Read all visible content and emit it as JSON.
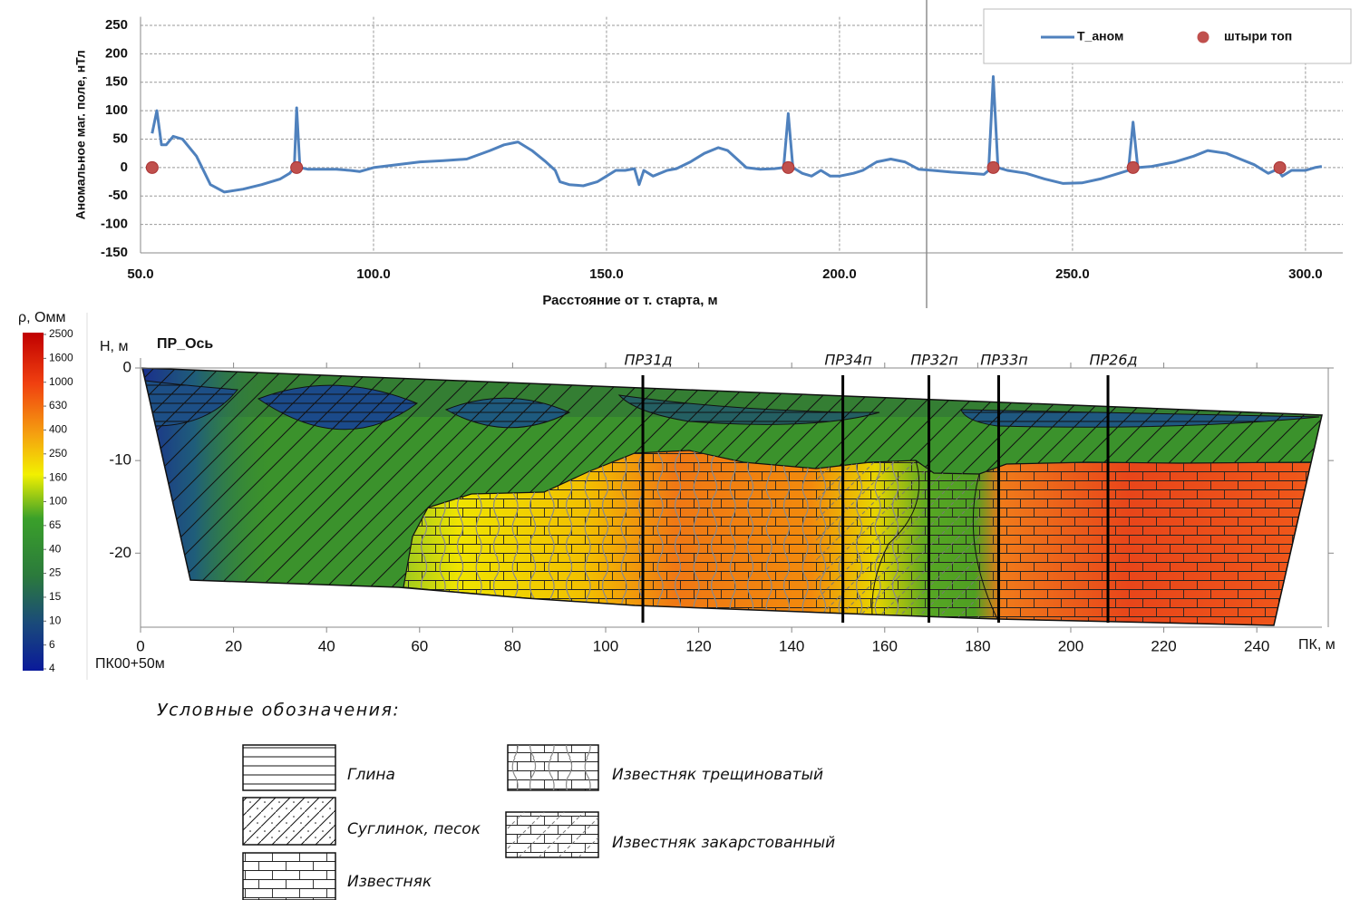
{
  "chart_data": [
    {
      "type": "line",
      "ylabel": "Аномальное маг. поле, нТл",
      "xlabel": "Расстояние от т. старта, м",
      "x": [
        52.5,
        53.5,
        54.5,
        55.5,
        57,
        59,
        62,
        65,
        68,
        72,
        76,
        80,
        82,
        83,
        83.5,
        84.2,
        86,
        92,
        95,
        97,
        100,
        105,
        110,
        115,
        120,
        125,
        128,
        131,
        134,
        137,
        139,
        140,
        142,
        145,
        148,
        150,
        152,
        154,
        156,
        157,
        158,
        160,
        163,
        165,
        168,
        171,
        174,
        176,
        178,
        180,
        183,
        186,
        188,
        189,
        190,
        192,
        194,
        196,
        198,
        200,
        203,
        205,
        208,
        211,
        214,
        217,
        220,
        224,
        228,
        231,
        232,
        233,
        234,
        236,
        240,
        244,
        248,
        252,
        256,
        260,
        262,
        263,
        264,
        267,
        272,
        276,
        279,
        283,
        286,
        289,
        292,
        294,
        295,
        297,
        300,
        302,
        303.5
      ],
      "series": [
        {
          "name": "T_аном",
          "color": "#4f81bd",
          "values": [
            60,
            100,
            40,
            40,
            55,
            50,
            20,
            -30,
            -43,
            -38,
            -30,
            -20,
            -10,
            0,
            105,
            0,
            -3,
            -3,
            -5,
            -7,
            0,
            5,
            10,
            12,
            15,
            30,
            40,
            45,
            30,
            10,
            -5,
            -25,
            -30,
            -32,
            -25,
            -15,
            -5,
            -5,
            -2,
            -30,
            -5,
            -15,
            -5,
            -2,
            10,
            25,
            35,
            30,
            15,
            0,
            -3,
            -2,
            0,
            95,
            0,
            -10,
            -15,
            -5,
            -15,
            -15,
            -10,
            -5,
            10,
            15,
            10,
            -3,
            -5,
            -8,
            -10,
            -12,
            -5,
            160,
            0,
            -5,
            -10,
            -20,
            -28,
            -27,
            -20,
            -10,
            -5,
            80,
            0,
            2,
            10,
            20,
            30,
            25,
            15,
            5,
            -10,
            -3,
            -15,
            -5,
            -5,
            0,
            2
          ]
        }
      ],
      "markers": {
        "name": "штыри топ",
        "color": "#c0504d",
        "x": [
          52.5,
          83.5,
          189,
          233,
          263,
          294.5
        ],
        "values": [
          0,
          0,
          0,
          0,
          0,
          0
        ]
      },
      "xlim": [
        50,
        308
      ],
      "ylim": [
        -150,
        265
      ],
      "xticks": [
        {
          "value": 50,
          "label": "50.0"
        },
        {
          "value": 100,
          "label": "100.0"
        },
        {
          "value": 150,
          "label": "150.0"
        },
        {
          "value": 200,
          "label": "200.0"
        },
        {
          "value": 250,
          "label": "250.0"
        },
        {
          "value": 300,
          "label": "300.0"
        }
      ],
      "yticks": [
        250,
        200,
        150,
        100,
        50,
        0,
        -50,
        -100,
        -150
      ],
      "grid": true,
      "legend": "top-right"
    },
    {
      "type": "section",
      "title": "ПР_Ось",
      "ylabel": "Н, м",
      "xlabel": "ПК, м",
      "origin_label": "ПК00+50м",
      "xlim": [
        0,
        254
      ],
      "ylim": [
        -28,
        0
      ],
      "xticks": [
        0,
        20,
        40,
        60,
        80,
        100,
        120,
        140,
        160,
        180,
        200,
        220,
        240
      ],
      "yticks": [
        0,
        -10,
        -20
      ],
      "boreholes": {
        "names": [
          "ПР31д",
          "ПР34п",
          "ПР32п",
          "ПР33п",
          "ПР26д"
        ],
        "x": [
          108,
          151,
          169.5,
          184.5,
          208
        ]
      },
      "colorbar": {
        "label": "ρ, Омм",
        "ticks": [
          2500,
          1600,
          1000,
          630,
          400,
          250,
          160,
          100,
          65,
          40,
          25,
          15,
          10,
          6,
          4
        ]
      }
    }
  ],
  "legend": {
    "title": "Условные обозначения:",
    "items": [
      "Глина",
      "Суглинок, песок",
      "Известняк",
      "Известняк трещиноватый",
      "Известняк закарстованный"
    ]
  }
}
